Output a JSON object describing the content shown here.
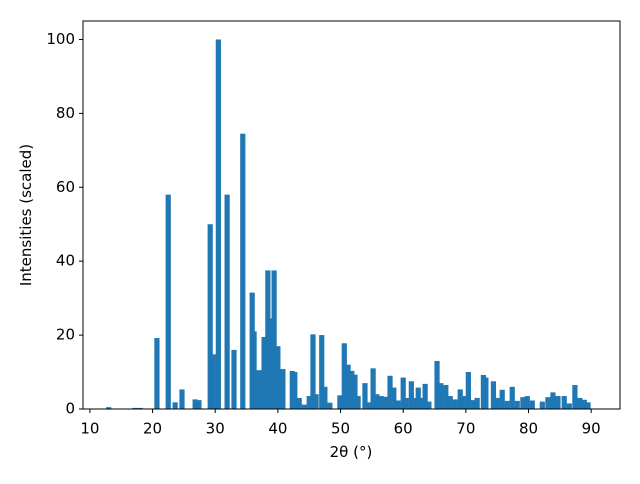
{
  "chart_data": {
    "type": "bar",
    "xlabel": "2θ (°)",
    "ylabel": "Intensities (scaled)",
    "color": "#1f77b4",
    "x": [
      13.0,
      17.2,
      18.0,
      20.7,
      22.5,
      23.6,
      24.7,
      26.8,
      27.4,
      29.2,
      29.7,
      30.5,
      31.9,
      33.0,
      34.4,
      35.9,
      36.2,
      37.0,
      37.8,
      38.4,
      38.9,
      39.4,
      40.0,
      40.8,
      42.3,
      42.7,
      43.4,
      44.2,
      45.0,
      45.6,
      46.1,
      47.0,
      47.5,
      48.3,
      49.9,
      50.6,
      51.2,
      51.8,
      52.3,
      52.8,
      53.9,
      54.7,
      55.2,
      55.8,
      56.5,
      57.1,
      57.9,
      58.5,
      59.2,
      60.0,
      60.5,
      61.3,
      61.7,
      62.4,
      62.9,
      63.5,
      64.1,
      65.4,
      66.0,
      66.8,
      67.5,
      68.3,
      69.1,
      69.6,
      70.4,
      71.2,
      71.8,
      72.8,
      73.2,
      74.4,
      75.0,
      75.8,
      76.6,
      77.4,
      78.2,
      79.1,
      79.8,
      80.6,
      82.2,
      83.1,
      83.9,
      84.7,
      85.7,
      86.5,
      87.4,
      88.2,
      88.9,
      89.5
    ],
    "values": [
      0.5,
      0.3,
      0.3,
      19.2,
      58,
      1.8,
      5.3,
      2.6,
      2.4,
      50,
      14.8,
      100,
      58,
      16,
      74.5,
      31.5,
      21,
      10.5,
      19.5,
      37.5,
      24.5,
      37.5,
      17,
      10.8,
      10.3,
      10,
      3,
      1.2,
      3.5,
      20.2,
      4,
      20,
      6,
      1.7,
      3.7,
      17.8,
      12,
      10.3,
      9.3,
      3.5,
      7,
      1.8,
      11,
      4,
      3.5,
      3.3,
      9,
      5.8,
      2.3,
      8.5,
      3,
      7.5,
      3,
      5.8,
      3,
      6.8,
      2,
      13,
      7,
      6.5,
      3.5,
      2.6,
      5.3,
      3.5,
      10,
      2.4,
      3,
      9.2,
      8.5,
      7.5,
      3,
      5.2,
      2.2,
      6,
      2.2,
      3.2,
      3.5,
      2.3,
      2,
      3.2,
      4.5,
      3.5,
      3.5,
      1.5,
      6.5,
      3,
      2.5,
      1.8
    ],
    "xlim": [
      8.9,
      94.6
    ],
    "ylim": [
      0,
      105
    ],
    "xticks": [
      10,
      20,
      30,
      40,
      50,
      60,
      70,
      80,
      90
    ],
    "yticks": [
      0,
      20,
      40,
      60,
      80,
      100
    ]
  }
}
